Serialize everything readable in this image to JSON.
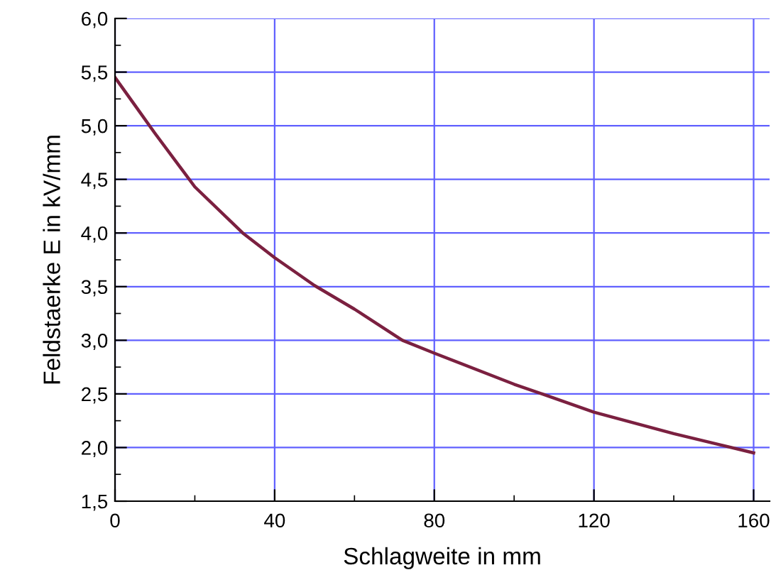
{
  "chart_data": {
    "type": "line",
    "xlabel": "Schlagweite in mm",
    "ylabel": "Feldstaerke E in kV/mm",
    "x": [
      0,
      5,
      10,
      20,
      32,
      40,
      50,
      60,
      72,
      80,
      100,
      107,
      120,
      140,
      160
    ],
    "series": [
      {
        "color": "#7b2040",
        "values": [
          5.45,
          5.19,
          4.93,
          4.43,
          4.0,
          3.77,
          3.51,
          3.29,
          3.0,
          2.88,
          2.59,
          2.5,
          2.33,
          2.13,
          1.95
        ]
      }
    ],
    "xlim": [
      0,
      164
    ],
    "ylim": [
      1.5,
      6.0
    ],
    "xticks": [
      0,
      {
        "value": 20,
        "label": null
      },
      40,
      {
        "value": 60,
        "label": null
      },
      80,
      {
        "value": 100,
        "label": null
      },
      120,
      {
        "value": 140,
        "label": null
      },
      160
    ],
    "yticks": [
      {
        "value": 1.5,
        "label": "1,5"
      },
      {
        "value": 1.75,
        "label": null
      },
      {
        "value": 2.0,
        "label": "2,0"
      },
      {
        "value": 2.25,
        "label": null
      },
      {
        "value": 2.5,
        "label": "2,5"
      },
      {
        "value": 2.75,
        "label": null
      },
      {
        "value": 3.0,
        "label": "3,0"
      },
      {
        "value": 3.25,
        "label": null
      },
      {
        "value": 3.5,
        "label": "3,5"
      },
      {
        "value": 3.75,
        "label": null
      },
      {
        "value": 4.0,
        "label": "4,0"
      },
      {
        "value": 4.25,
        "label": null
      },
      {
        "value": 4.5,
        "label": "4,5"
      },
      {
        "value": 4.75,
        "label": null
      },
      {
        "value": 5.0,
        "label": "5,0"
      },
      {
        "value": 5.25,
        "label": null
      },
      {
        "value": 5.5,
        "label": "5,5"
      },
      {
        "value": 5.75,
        "label": null
      },
      {
        "value": 6.0,
        "label": "6,0"
      }
    ],
    "grid": true,
    "marker": "none",
    "line_style": "solid",
    "legend": false
  }
}
